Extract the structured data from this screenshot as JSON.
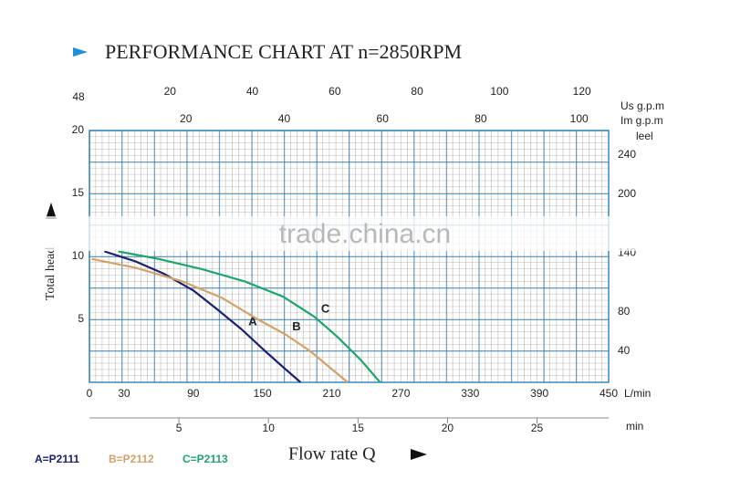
{
  "chart_data": {
    "type": "line",
    "title": "PERFORMANCE CHART AT n=2850RPM",
    "ylabel": "Total head",
    "xlabel": "Flow rate Q",
    "watermark": "trade.china.cn",
    "x_unit": "L/min",
    "xlim": [
      0,
      450
    ],
    "xticks": [
      0,
      30,
      90,
      150,
      210,
      270,
      330,
      390,
      450
    ],
    "ylim": [
      0,
      20
    ],
    "yticks": [
      5,
      10,
      15,
      20
    ],
    "y2_unit": "leel",
    "y2lim": [
      8,
      265
    ],
    "y2ticks": [
      40,
      80,
      140,
      200,
      240
    ],
    "top_left_label": "48",
    "us_gpm_axis": {
      "unit": "Us g.p.m",
      "lim": [
        0,
        126.5
      ],
      "ticks": [
        20,
        40,
        60,
        80,
        100,
        120
      ]
    },
    "im_gpm_axis": {
      "unit": "Im g.p.m",
      "lim": [
        0,
        106
      ],
      "ticks": [
        20,
        40,
        60,
        80,
        100
      ]
    },
    "time_axis": {
      "unit": "min",
      "lim": [
        0,
        29
      ],
      "ticks": [
        5,
        10,
        15,
        20,
        25
      ]
    },
    "grid": true,
    "series": [
      {
        "name": "A=P2111",
        "curve_label": "A",
        "color": "#1c1f6e",
        "x": [
          13,
          40,
          65,
          90,
          112,
          132,
          152,
          168,
          183
        ],
        "values": [
          10.4,
          9.6,
          8.6,
          7.3,
          5.7,
          4.2,
          2.5,
          1.2,
          0
        ]
      },
      {
        "name": "B=P2112",
        "curve_label": "B",
        "color": "#d2a26c",
        "x": [
          2,
          40,
          81,
          115,
          144,
          170,
          191,
          208,
          224
        ],
        "values": [
          9.8,
          9.1,
          8.0,
          6.7,
          5.1,
          3.8,
          2.5,
          1.2,
          0
        ]
      },
      {
        "name": "C=P2113",
        "curve_label": "C",
        "color": "#1ea56c",
        "x": [
          25,
          60,
          97,
          135,
          168,
          195,
          215,
          235,
          252
        ],
        "values": [
          10.4,
          9.8,
          9.0,
          8.0,
          6.8,
          5.2,
          3.6,
          1.8,
          0
        ]
      }
    ]
  }
}
